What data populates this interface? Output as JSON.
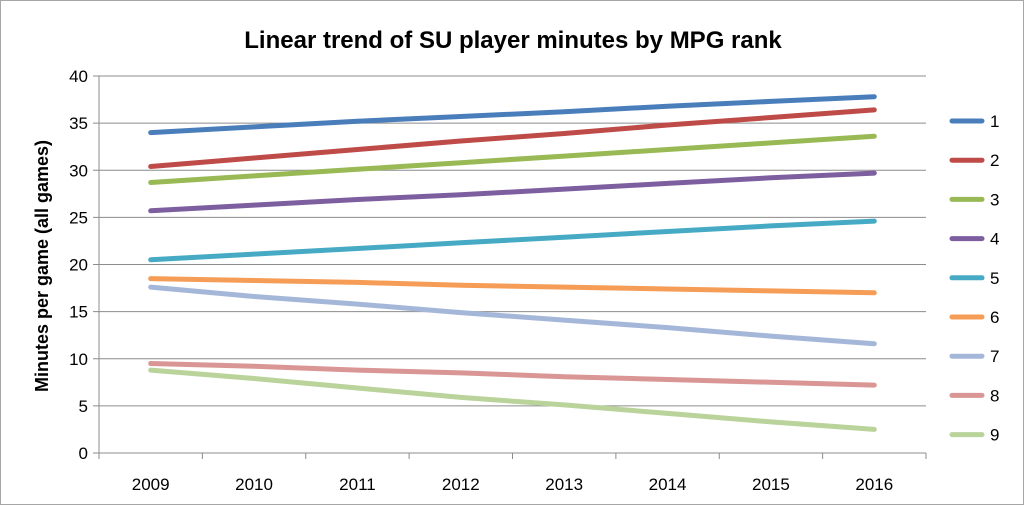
{
  "chart_data": {
    "type": "line",
    "title": "Linear trend of SU player minutes by MPG rank",
    "xlabel": "",
    "ylabel": "Minutes per game (all games)",
    "x": [
      "2009",
      "2010",
      "2011",
      "2012",
      "2013",
      "2014",
      "2015",
      "2016"
    ],
    "ylim": [
      0,
      40
    ],
    "yticks": [
      0,
      5,
      10,
      15,
      20,
      25,
      30,
      35,
      40
    ],
    "grid": "horizontal",
    "legend_position": "right",
    "series": [
      {
        "name": "1",
        "color": "#4A7EBB",
        "values": [
          34.0,
          34.6,
          35.2,
          35.7,
          36.2,
          36.8,
          37.3,
          37.8
        ]
      },
      {
        "name": "2",
        "color": "#BE4B48",
        "values": [
          30.4,
          31.3,
          32.2,
          33.1,
          33.9,
          34.8,
          35.6,
          36.4
        ]
      },
      {
        "name": "3",
        "color": "#98B954",
        "values": [
          28.7,
          29.4,
          30.1,
          30.8,
          31.5,
          32.2,
          32.9,
          33.6
        ]
      },
      {
        "name": "4",
        "color": "#7D5FA0",
        "values": [
          25.7,
          26.3,
          26.9,
          27.4,
          28.0,
          28.6,
          29.2,
          29.7
        ]
      },
      {
        "name": "5",
        "color": "#46AAC5",
        "values": [
          20.5,
          21.1,
          21.7,
          22.3,
          22.9,
          23.5,
          24.1,
          24.6
        ]
      },
      {
        "name": "6",
        "color": "#F59D56",
        "values": [
          18.5,
          18.3,
          18.1,
          17.8,
          17.6,
          17.4,
          17.2,
          17.0
        ]
      },
      {
        "name": "7",
        "color": "#A5B7D9",
        "values": [
          17.6,
          16.6,
          15.8,
          14.9,
          14.1,
          13.3,
          12.4,
          11.6
        ]
      },
      {
        "name": "8",
        "color": "#D99694",
        "values": [
          9.5,
          9.2,
          8.8,
          8.5,
          8.1,
          7.8,
          7.5,
          7.2
        ]
      },
      {
        "name": "9",
        "color": "#B9D39A",
        "values": [
          8.8,
          7.9,
          6.9,
          5.9,
          5.1,
          4.2,
          3.3,
          2.5
        ]
      }
    ]
  }
}
